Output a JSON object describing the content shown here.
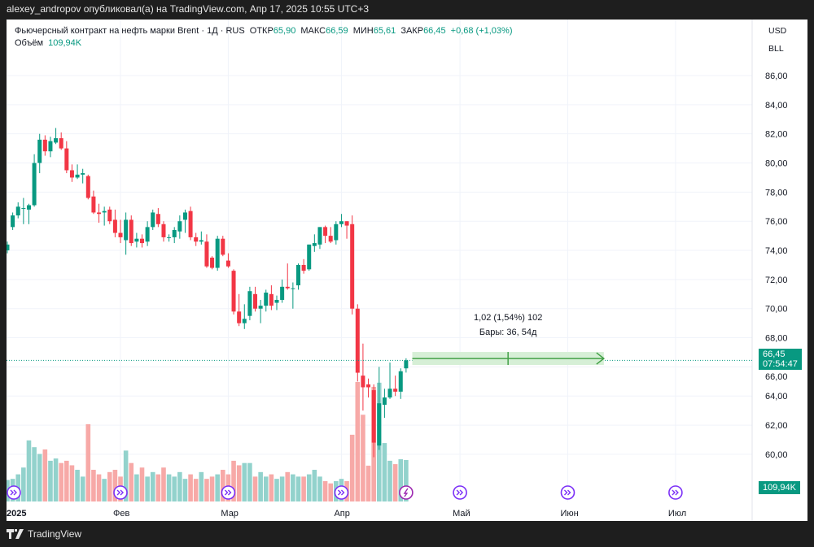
{
  "header": {
    "published": "alexey_andropov опубликовал(а) на TradingView.com, Апр 17, 2025 10:55 UTC+3"
  },
  "legend": {
    "symbol": "Фьючерсный контракт на нефть марки Brent · 1Д · RUS",
    "open_label": "ОТКР",
    "open": "65,90",
    "high_label": "МАКС",
    "high": "66,59",
    "low_label": "МИН",
    "low": "65,61",
    "close_label": "ЗАКР",
    "close": "66,45",
    "change": "+0,68 (+1,03%)",
    "volume_label": "Объём",
    "volume": "109,94K"
  },
  "units": {
    "currency": "USD",
    "unit": "BLL"
  },
  "price_tag": {
    "price": "66,45",
    "countdown": "07:54:47"
  },
  "volume_tag": "109,94K",
  "measure": {
    "line1": "1,02 (1,54%) 102",
    "line2": "Бары: 36, 54д"
  },
  "footer": {
    "brand": "TradingView"
  },
  "colors": {
    "up": "#089981",
    "down": "#f23645",
    "vol_up": "#92d2cc",
    "vol_down": "#f7a9a7",
    "event": "#7b2ff7",
    "measure": "#43a047"
  },
  "chart_data": {
    "type": "candlestick",
    "price_ticks": [
      "86,00",
      "84,00",
      "82,00",
      "80,00",
      "78,00",
      "76,00",
      "74,00",
      "72,00",
      "70,00",
      "68,00",
      "66,00",
      "64,00",
      "62,00",
      "60,00"
    ],
    "price_tick_values": [
      86,
      84,
      82,
      80,
      78,
      76,
      74,
      72,
      70,
      68,
      66,
      64,
      62,
      60
    ],
    "time_labels": [
      {
        "label": "2025",
        "bar": 0
      },
      {
        "label": "Фев",
        "bar": 21
      },
      {
        "label": "Мар",
        "bar": 41
      },
      {
        "label": "Апр",
        "bar": 62
      },
      {
        "label": "Май",
        "bar": 84
      },
      {
        "label": "Июн",
        "bar": 104
      },
      {
        "label": "Июл",
        "bar": 124
      }
    ],
    "ohlcv": [
      [
        74.0,
        74.6,
        73.8,
        74.4,
        57
      ],
      [
        75.6,
        76.6,
        75.4,
        76.4,
        60
      ],
      [
        76.4,
        77.3,
        76.2,
        77.0,
        72
      ],
      [
        76.9,
        77.6,
        75.8,
        76.9,
        90
      ],
      [
        76.8,
        77.2,
        75.8,
        77.1,
        162
      ],
      [
        77.1,
        80.6,
        77.0,
        80.0,
        144
      ],
      [
        80.0,
        82.0,
        79.3,
        81.6,
        126
      ],
      [
        81.6,
        81.9,
        80.5,
        80.8,
        138
      ],
      [
        80.8,
        81.8,
        80.4,
        81.5,
        108
      ],
      [
        81.4,
        82.4,
        81.3,
        81.7,
        114
      ],
      [
        81.7,
        82.1,
        80.9,
        81.0,
        102
      ],
      [
        81.0,
        81.5,
        79.3,
        79.5,
        108
      ],
      [
        79.5,
        79.9,
        78.7,
        79.0,
        96
      ],
      [
        79.0,
        79.9,
        78.9,
        79.2,
        84
      ],
      [
        79.2,
        79.6,
        78.6,
        79.3,
        66
      ],
      [
        79.1,
        79.2,
        77.5,
        77.6,
        205
      ],
      [
        77.7,
        78.1,
        76.5,
        76.6,
        84
      ],
      [
        76.6,
        77.2,
        75.9,
        76.5,
        72
      ],
      [
        76.6,
        77.0,
        75.7,
        76.7,
        60
      ],
      [
        76.8,
        77.0,
        75.8,
        76.0,
        78
      ],
      [
        76.1,
        76.8,
        74.9,
        75.2,
        84
      ],
      [
        75.2,
        76.1,
        74.5,
        74.9,
        66
      ],
      [
        74.7,
        76.6,
        73.7,
        76.1,
        135
      ],
      [
        76.1,
        76.4,
        74.3,
        74.5,
        102
      ],
      [
        74.6,
        75.2,
        74.2,
        74.8,
        72
      ],
      [
        74.8,
        75.1,
        74.2,
        74.5,
        90
      ],
      [
        74.6,
        76.0,
        74.3,
        75.6,
        66
      ],
      [
        75.6,
        76.8,
        75.4,
        76.6,
        78
      ],
      [
        76.5,
        76.9,
        75.6,
        75.8,
        72
      ],
      [
        75.8,
        76.0,
        74.6,
        74.9,
        90
      ],
      [
        74.9,
        75.1,
        74.6,
        74.9,
        72
      ],
      [
        74.9,
        75.6,
        74.5,
        75.4,
        66
      ],
      [
        75.3,
        76.4,
        74.8,
        76.0,
        78
      ],
      [
        76.1,
        76.8,
        75.2,
        76.6,
        60
      ],
      [
        76.7,
        77.0,
        74.7,
        74.9,
        72
      ],
      [
        74.9,
        75.2,
        74.3,
        74.6,
        60
      ],
      [
        74.6,
        75.3,
        74.4,
        74.7,
        78
      ],
      [
        74.6,
        75.1,
        72.8,
        72.9,
        60
      ],
      [
        73.5,
        73.6,
        72.7,
        72.8,
        66
      ],
      [
        72.8,
        75.0,
        72.6,
        74.8,
        72
      ],
      [
        74.8,
        75.0,
        73.6,
        73.7,
        84
      ],
      [
        73.3,
        73.8,
        72.8,
        72.9,
        72
      ],
      [
        72.6,
        72.7,
        69.6,
        69.8,
        108
      ],
      [
        69.8,
        71.0,
        68.8,
        69.0,
        96
      ],
      [
        69.0,
        70.3,
        68.6,
        69.3,
        102
      ],
      [
        69.5,
        71.5,
        69.2,
        71.2,
        102
      ],
      [
        71.0,
        71.5,
        69.8,
        70.0,
        66
      ],
      [
        70.0,
        70.6,
        69.0,
        70.2,
        78
      ],
      [
        70.2,
        71.3,
        69.8,
        71.1,
        66
      ],
      [
        71.0,
        71.6,
        69.9,
        70.2,
        72
      ],
      [
        70.4,
        70.9,
        69.9,
        70.6,
        60
      ],
      [
        70.6,
        72.0,
        70.4,
        71.5,
        66
      ],
      [
        71.5,
        73.1,
        71.3,
        71.4,
        78
      ],
      [
        71.4,
        71.8,
        70.0,
        71.4,
        72
      ],
      [
        71.6,
        73.1,
        71.3,
        73.0,
        66
      ],
      [
        73.0,
        73.4,
        72.4,
        72.6,
        66
      ],
      [
        72.7,
        74.4,
        72.6,
        74.4,
        72
      ],
      [
        74.3,
        75.1,
        73.9,
        74.5,
        84
      ],
      [
        74.4,
        75.6,
        74.1,
        75.6,
        66
      ],
      [
        75.6,
        75.7,
        74.5,
        75.0,
        54
      ],
      [
        75.0,
        75.6,
        74.5,
        74.6,
        48
      ],
      [
        74.7,
        76.0,
        74.4,
        75.8,
        54
      ],
      [
        75.8,
        76.5,
        75.6,
        76.0,
        60
      ],
      [
        76.0,
        76.0,
        74.8,
        75.7,
        54
      ],
      [
        75.8,
        76.4,
        69.6,
        70.0,
        177
      ],
      [
        70.0,
        70.3,
        65.0,
        65.6,
        317
      ],
      [
        65.4,
        67.6,
        63.0,
        64.6,
        230
      ],
      [
        64.8,
        65.2,
        63.9,
        64.6,
        95
      ],
      [
        64.4,
        64.8,
        59.8,
        60.8,
        304
      ],
      [
        60.6,
        66.0,
        60.3,
        63.5,
        315
      ],
      [
        63.4,
        64.5,
        62.5,
        63.9,
        155
      ],
      [
        63.9,
        66.3,
        63.8,
        64.5,
        108
      ],
      [
        64.5,
        65.4,
        64.0,
        64.3,
        99
      ],
      [
        64.3,
        65.9,
        63.8,
        65.7,
        112
      ],
      [
        65.9,
        66.59,
        65.61,
        66.45,
        109.94
      ]
    ],
    "event_bars": [
      0,
      21,
      41,
      62,
      84,
      104,
      124
    ],
    "dividend_bar": 74,
    "last_price": 66.45,
    "measure_range": {
      "from_bar": 75,
      "to_bar": 111,
      "price": 66.8
    }
  }
}
